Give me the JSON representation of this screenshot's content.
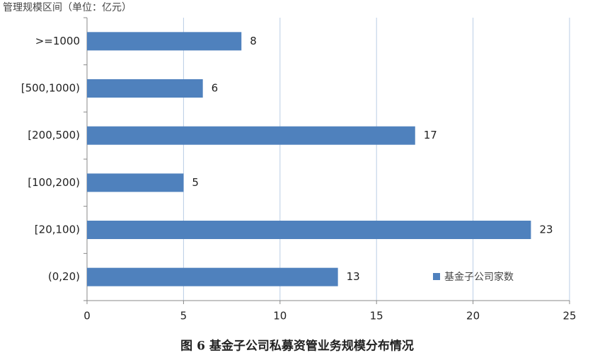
{
  "chart_data": {
    "type": "bar",
    "orientation": "horizontal",
    "y_label": "管理规模区间（单位：亿元）",
    "caption": "图 6   基金子公司私募资管业务规模分布情况",
    "categories": [
      ">=1000",
      "[500,1000)",
      "[200,500)",
      "[100,200)",
      "[20,100)",
      "(0,20)"
    ],
    "series": [
      {
        "name": "基金子公司家数",
        "color": "#4f81bd",
        "values": [
          8,
          6,
          17,
          5,
          23,
          13
        ]
      }
    ],
    "xlim": [
      0,
      25
    ],
    "xticks": [
      0,
      5,
      10,
      15,
      20,
      25
    ],
    "grid": true,
    "grid_color": "#b9cde5",
    "legend": "lower right"
  }
}
